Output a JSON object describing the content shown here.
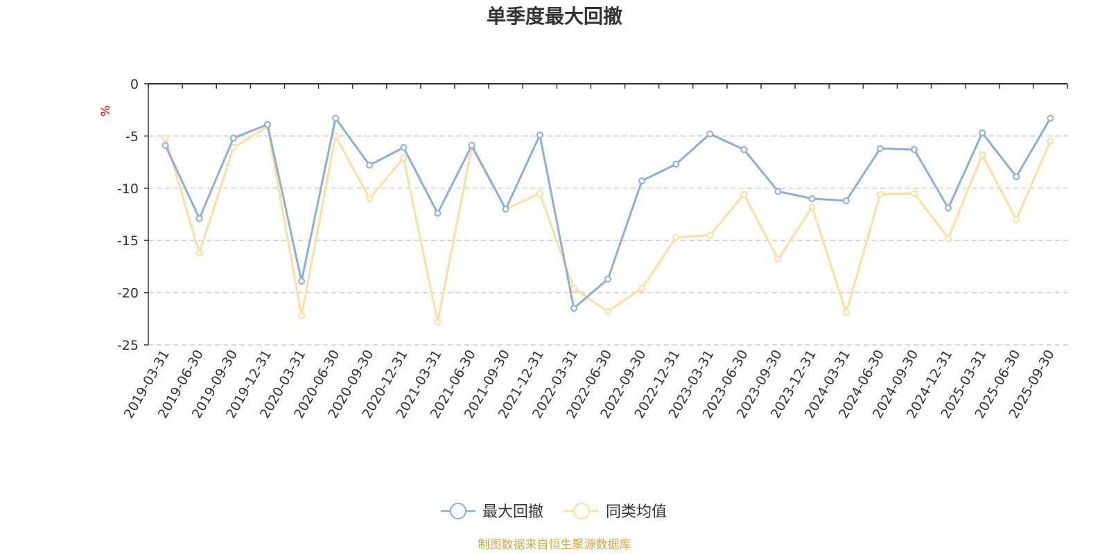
{
  "chart_data": {
    "type": "line",
    "title": "单季度最大回撤",
    "ylabel": "%",
    "ylim": [
      -25,
      0
    ],
    "yticks": [
      0,
      -5,
      -10,
      -15,
      -20,
      -25
    ],
    "grid": true,
    "legend_position": "bottom",
    "categories": [
      "2019-03-31",
      "2019-06-30",
      "2019-09-30",
      "2019-12-31",
      "2020-03-31",
      "2020-06-30",
      "2020-09-30",
      "2020-12-31",
      "2021-03-31",
      "2021-06-30",
      "2021-09-30",
      "2021-12-31",
      "2022-03-31",
      "2022-06-30",
      "2022-09-30",
      "2022-12-31",
      "2023-03-31",
      "2023-06-30",
      "2023-09-30",
      "2023-12-31",
      "2024-03-31",
      "2024-06-30",
      "2024-09-30",
      "2024-12-31",
      "2025-03-31",
      "2025-06-30",
      "2025-09-30"
    ],
    "series": [
      {
        "name": "最大回撤",
        "color": "#8fadd9",
        "values": [
          -5.9,
          -12.9,
          -5.2,
          -3.9,
          -18.9,
          -3.3,
          -7.8,
          -6.1,
          -12.4,
          -5.9,
          -12.0,
          -4.9,
          -21.5,
          -18.7,
          -9.3,
          -7.7,
          -4.8,
          -6.3,
          -10.3,
          -11.0,
          -11.2,
          -6.2,
          -6.3,
          -11.9,
          -4.7,
          -8.9,
          -3.3
        ]
      },
      {
        "name": "同类均值",
        "color": "#fcdea1",
        "values": [
          -5.2,
          -16.2,
          -6.1,
          -4.1,
          -22.2,
          -5.0,
          -11.0,
          -7.1,
          -22.8,
          -6.1,
          -12.0,
          -10.5,
          -19.6,
          -21.8,
          -19.6,
          -14.7,
          -14.5,
          -10.6,
          -16.8,
          -11.8,
          -21.9,
          -10.6,
          -10.5,
          -14.8,
          -6.8,
          -13.0,
          -5.5
        ]
      }
    ],
    "footer": "制图数据来自恒生聚源数据库",
    "footer_color": "#d4a843",
    "ylabel_color": "#ff0000"
  }
}
